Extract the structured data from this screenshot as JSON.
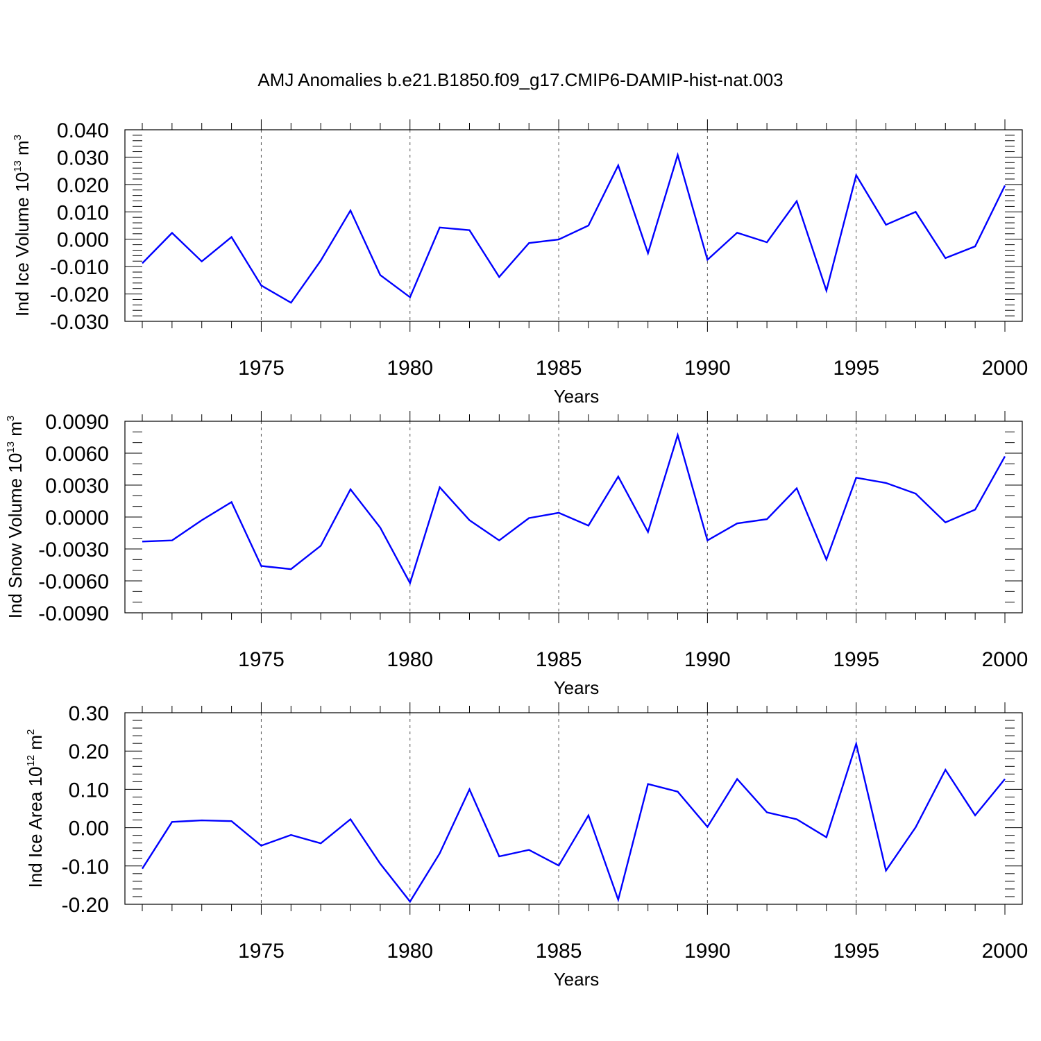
{
  "title": "AMJ Anomalies b.e21.B1850.f09_g17.CMIP6-DAMIP-hist-nat.003",
  "line_color": "#0000ff",
  "chart_data": [
    {
      "type": "line",
      "ylabel": {
        "text": "Ind Ice Volume 10",
        "exp": "13",
        "unit": " m",
        "unit_exp": "3"
      },
      "xlabel": "Years",
      "xlim": [
        1971,
        2000
      ],
      "ylim": [
        -0.03,
        0.04
      ],
      "major_step": 0.01,
      "minor_step": 0.002,
      "decimals": 3,
      "x_ticks": [
        1975,
        1980,
        1985,
        1990,
        1995,
        2000
      ],
      "x": [
        1971,
        1972,
        1973,
        1974,
        1975,
        1976,
        1977,
        1978,
        1979,
        1980,
        1981,
        1982,
        1983,
        1984,
        1985,
        1986,
        1987,
        1988,
        1989,
        1990,
        1991,
        1992,
        1993,
        1994,
        1995,
        1996,
        1997,
        1998,
        1999,
        2000
      ],
      "series": [
        {
          "values": [
            -0.0088,
            0.0023,
            -0.0081,
            0.0008,
            -0.0169,
            -0.0232,
            -0.0078,
            0.0105,
            -0.0131,
            -0.0212,
            0.0043,
            0.0033,
            -0.0138,
            -0.0014,
            -0.0001,
            0.005,
            0.027,
            -0.0051,
            0.0308,
            -0.0075,
            0.0024,
            -0.0011,
            0.0139,
            -0.0188,
            0.0234,
            0.0053,
            0.01,
            -0.0069,
            -0.0026,
            0.0196
          ]
        }
      ]
    },
    {
      "type": "line",
      "ylabel": {
        "text": "Ind Snow Volume 10",
        "exp": "13",
        "unit": " m",
        "unit_exp": "3"
      },
      "xlabel": "Years",
      "xlim": [
        1971,
        2000
      ],
      "ylim": [
        -0.009,
        0.009
      ],
      "major_step": 0.003,
      "minor_step": 0.001,
      "decimals": 4,
      "x_ticks": [
        1975,
        1980,
        1985,
        1990,
        1995,
        2000
      ],
      "x": [
        1971,
        1972,
        1973,
        1974,
        1975,
        1976,
        1977,
        1978,
        1979,
        1980,
        1981,
        1982,
        1983,
        1984,
        1985,
        1986,
        1987,
        1988,
        1989,
        1990,
        1991,
        1992,
        1993,
        1994,
        1995,
        1996,
        1997,
        1998,
        1999,
        2000
      ],
      "series": [
        {
          "values": [
            -0.0023,
            -0.0022,
            -0.0003,
            0.0014,
            -0.0046,
            -0.0049,
            -0.0027,
            0.0026,
            -0.001,
            -0.0062,
            0.0028,
            -0.0003,
            -0.0022,
            -0.0001,
            0.0004,
            -0.0008,
            0.0038,
            -0.0014,
            0.0077,
            -0.0022,
            -0.0006,
            -0.0002,
            0.0027,
            -0.004,
            0.0037,
            0.0032,
            0.0022,
            -0.0005,
            0.0007,
            0.0057
          ]
        }
      ]
    },
    {
      "type": "line",
      "ylabel": {
        "text": "Ind Ice Area 10",
        "exp": "12",
        "unit": " m",
        "unit_exp": "2"
      },
      "xlabel": "Years",
      "xlim": [
        1971,
        2000
      ],
      "ylim": [
        -0.2,
        0.3
      ],
      "major_step": 0.1,
      "minor_step": 0.02,
      "decimals": 2,
      "x_ticks": [
        1975,
        1980,
        1985,
        1990,
        1995,
        2000
      ],
      "x": [
        1971,
        1972,
        1973,
        1974,
        1975,
        1976,
        1977,
        1978,
        1979,
        1980,
        1981,
        1982,
        1983,
        1984,
        1985,
        1986,
        1987,
        1988,
        1989,
        1990,
        1991,
        1992,
        1993,
        1994,
        1995,
        1996,
        1997,
        1998,
        1999,
        2000
      ],
      "series": [
        {
          "values": [
            -0.107,
            0.015,
            0.019,
            0.017,
            -0.047,
            -0.019,
            -0.041,
            0.022,
            -0.094,
            -0.193,
            -0.067,
            0.1,
            -0.075,
            -0.058,
            -0.099,
            0.032,
            -0.188,
            0.114,
            0.094,
            0.002,
            0.127,
            0.04,
            0.022,
            -0.025,
            0.219,
            -0.112,
            0.001,
            0.151,
            0.032,
            0.127
          ]
        }
      ]
    }
  ]
}
